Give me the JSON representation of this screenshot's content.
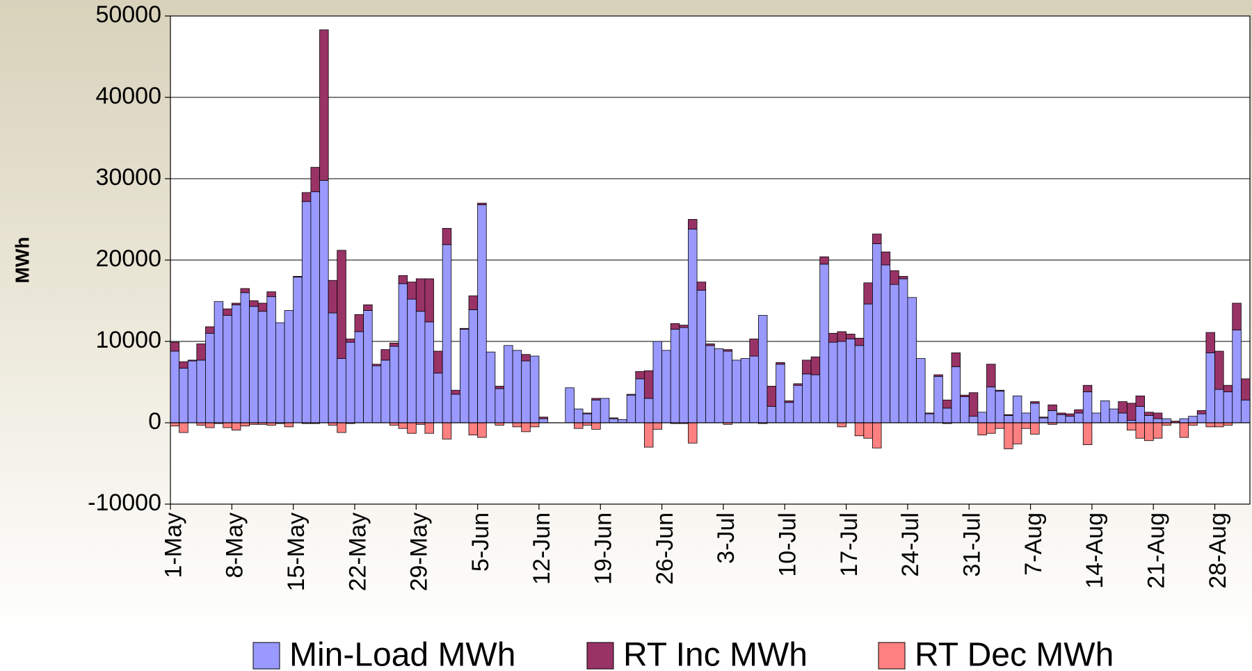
{
  "chart_data": {
    "type": "bar",
    "stacked": true,
    "ylabel": "MWh",
    "categories": [
      "1-May",
      null,
      null,
      null,
      null,
      null,
      null,
      "8-May",
      null,
      null,
      null,
      null,
      null,
      null,
      "15-May",
      null,
      null,
      null,
      null,
      null,
      null,
      "22-May",
      null,
      null,
      null,
      null,
      null,
      null,
      "29-May",
      null,
      null,
      null,
      null,
      null,
      null,
      "5-Jun",
      null,
      null,
      null,
      null,
      null,
      null,
      "12-Jun",
      null,
      null,
      null,
      null,
      null,
      null,
      "19-Jun",
      null,
      null,
      null,
      null,
      null,
      null,
      "26-Jun",
      null,
      null,
      null,
      null,
      null,
      null,
      "3-Jul",
      null,
      null,
      null,
      null,
      null,
      null,
      "10-Jul",
      null,
      null,
      null,
      null,
      null,
      null,
      "17-Jul",
      null,
      null,
      null,
      null,
      null,
      null,
      "24-Jul",
      null,
      null,
      null,
      null,
      null,
      null,
      "31-Jul",
      null,
      null,
      null,
      null,
      null,
      null,
      "7-Aug",
      null,
      null,
      null,
      null,
      null,
      null,
      "14-Aug",
      null,
      null,
      null,
      null,
      null,
      null,
      "21-Aug",
      null,
      null,
      null,
      null,
      null,
      null,
      "28-Aug",
      null,
      null,
      null
    ],
    "series": [
      {
        "name": "Min-Load MWh",
        "color": "#9999ff",
        "values": [
          8800,
          6700,
          7600,
          7700,
          11000,
          14900,
          13200,
          14500,
          16000,
          14300,
          13700,
          15500,
          12300,
          13800,
          17900,
          27200,
          28400,
          29800,
          13500,
          7900,
          9900,
          11200,
          13800,
          7000,
          7700,
          9400,
          17100,
          15200,
          13700,
          12400,
          6100,
          21900,
          3500,
          11500,
          13900,
          26800,
          8700,
          4200,
          9500,
          8900,
          7600,
          8200,
          500,
          0,
          0,
          4300,
          1700,
          1100,
          2800,
          3000,
          500,
          400,
          3400,
          5400,
          3000,
          10000,
          8900,
          11500,
          11700,
          23800,
          16300,
          9500,
          9100,
          8800,
          7700,
          7900,
          8200,
          13200,
          2000,
          7200,
          2500,
          4600,
          6000,
          5900,
          19500,
          9900,
          10000,
          10300,
          9500,
          14600,
          22000,
          19400,
          17000,
          17700,
          15400,
          7900,
          1100,
          5700,
          1800,
          6900,
          3200,
          800,
          1300,
          4400,
          3900,
          900,
          3300,
          1200,
          2400,
          600,
          1500,
          1000,
          800,
          1200,
          3800,
          1200,
          2700,
          1700,
          1200,
          300,
          2000,
          900,
          500,
          500,
          0,
          500,
          800,
          1100,
          8600,
          4100,
          3800,
          11400,
          2800
        ]
      },
      {
        "name": "RT Inc MWh",
        "color": "#993366",
        "values": [
          1100,
          800,
          100,
          2000,
          800,
          0,
          800,
          200,
          500,
          700,
          1000,
          600,
          0,
          0,
          100,
          1100,
          3000,
          18500,
          4000,
          13300,
          400,
          2100,
          700,
          200,
          1300,
          400,
          1000,
          2100,
          4000,
          5300,
          2700,
          2000,
          500,
          100,
          1700,
          200,
          0,
          300,
          0,
          0,
          800,
          0,
          200,
          0,
          0,
          0,
          0,
          100,
          200,
          0,
          100,
          0,
          100,
          900,
          3400,
          0,
          0,
          700,
          300,
          1200,
          1000,
          200,
          0,
          200,
          0,
          0,
          2100,
          0,
          2500,
          200,
          200,
          200,
          1700,
          2200,
          900,
          1100,
          1200,
          600,
          900,
          2600,
          1200,
          1600,
          1700,
          300,
          0,
          0,
          100,
          200,
          1000,
          1700,
          200,
          2900,
          0,
          2800,
          100,
          100,
          0,
          0,
          200,
          100,
          700,
          200,
          300,
          400,
          800,
          0,
          0,
          0,
          1400,
          2100,
          1300,
          400,
          700,
          0,
          200,
          0,
          0,
          400,
          2500,
          4700,
          800,
          3300,
          2600
        ]
      },
      {
        "name": "RT Dec MWh",
        "color": "#ff8080",
        "values": [
          -400,
          -1200,
          0,
          -300,
          -600,
          -100,
          -600,
          -900,
          -400,
          -200,
          -200,
          -300,
          -100,
          -500,
          0,
          -100,
          -100,
          0,
          -300,
          -1200,
          -100,
          0,
          0,
          0,
          0,
          -300,
          -700,
          -1300,
          -200,
          -1300,
          0,
          -2000,
          0,
          0,
          -1500,
          -1800,
          0,
          -300,
          0,
          -500,
          -1100,
          -500,
          0,
          0,
          0,
          0,
          -700,
          -300,
          -800,
          0,
          0,
          0,
          0,
          0,
          -3000,
          -800,
          0,
          -100,
          -100,
          -2500,
          0,
          0,
          0,
          -200,
          0,
          0,
          0,
          -100,
          0,
          0,
          0,
          0,
          0,
          0,
          0,
          0,
          -500,
          0,
          -1600,
          -1900,
          -3100,
          0,
          0,
          0,
          0,
          0,
          0,
          0,
          -100,
          0,
          0,
          0,
          -1500,
          -1300,
          -700,
          -3200,
          -2600,
          -700,
          -1400,
          0,
          -200,
          0,
          0,
          0,
          -2700,
          0,
          0,
          0,
          0,
          -900,
          -1900,
          -2200,
          -1900,
          -300,
          0,
          -1800,
          -300,
          0,
          -500,
          -500,
          -300,
          0,
          0
        ]
      }
    ],
    "ylim": [
      -10000,
      50000
    ],
    "yticks": [
      -10000,
      0,
      10000,
      20000,
      30000,
      40000,
      50000
    ],
    "grid": true,
    "legend": "bottom"
  }
}
